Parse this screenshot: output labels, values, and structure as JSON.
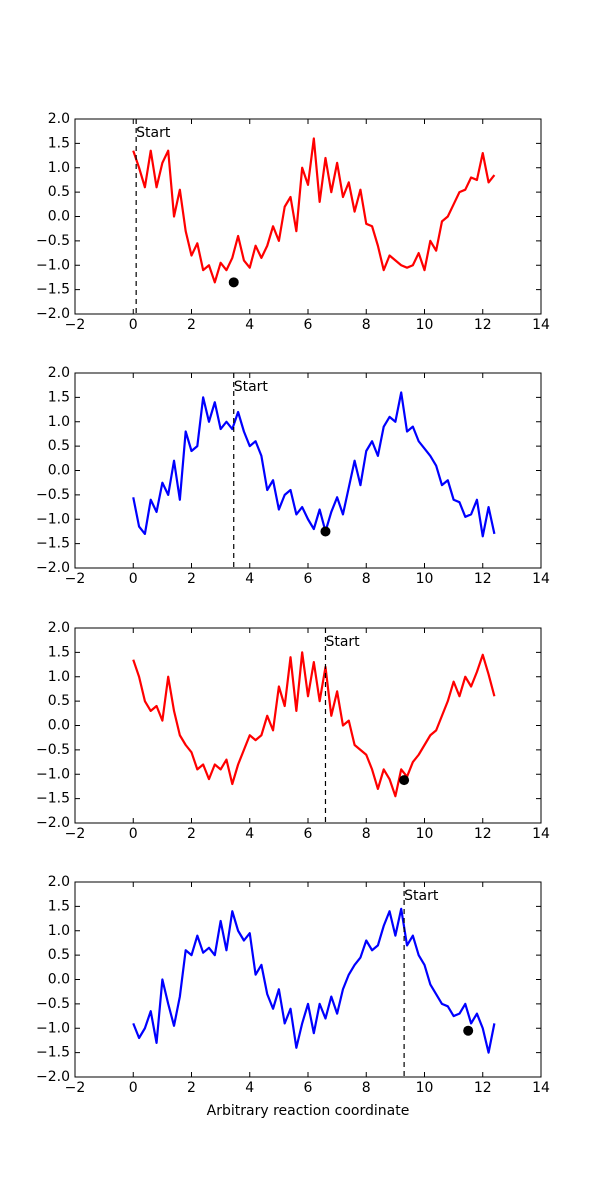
{
  "chart_data": [
    {
      "type": "line",
      "x": [
        0,
        0.2,
        0.4,
        0.6,
        0.8,
        1.0,
        1.2,
        1.4,
        1.6,
        1.8,
        2.0,
        2.2,
        2.4,
        2.6,
        2.8,
        3.0,
        3.2,
        3.4,
        3.6,
        3.8,
        4.0,
        4.2,
        4.4,
        4.6,
        4.8,
        5.0,
        5.2,
        5.4,
        5.6,
        5.8,
        6.0,
        6.2,
        6.4,
        6.6,
        6.8,
        7.0,
        7.2,
        7.4,
        7.6,
        7.8,
        8.0,
        8.2,
        8.4,
        8.6,
        8.8,
        9.0,
        9.2,
        9.4,
        9.6,
        9.8,
        10.0,
        10.2,
        10.4,
        10.6,
        10.8,
        11.0,
        11.2,
        11.4,
        11.6,
        11.8,
        12.0,
        12.2,
        12.4
      ],
      "series": [
        {
          "color": "#ff0000",
          "values": [
            1.35,
            1.0,
            0.6,
            1.35,
            0.6,
            1.1,
            1.35,
            0.0,
            0.55,
            -0.3,
            -0.8,
            -0.55,
            -1.1,
            -1.0,
            -1.35,
            -0.95,
            -1.1,
            -0.85,
            -0.4,
            -0.9,
            -1.05,
            -0.6,
            -0.85,
            -0.6,
            -0.2,
            -0.5,
            0.2,
            0.4,
            -0.3,
            1.0,
            0.65,
            1.6,
            0.3,
            1.2,
            0.5,
            1.1,
            0.4,
            0.7,
            0.1,
            0.55,
            -0.15,
            -0.2,
            -0.6,
            -1.1,
            -0.8,
            -0.9,
            -1.0,
            -1.05,
            -1.0,
            -0.75,
            -1.1,
            -0.5,
            -0.7,
            -0.1,
            0.0,
            0.25,
            0.5,
            0.55,
            0.8,
            0.75,
            1.3,
            0.7,
            0.85
          ]
        }
      ],
      "point": {
        "x": 3.45,
        "y": -1.35,
        "color": "#000000"
      },
      "vline": {
        "x": 0.1,
        "label": "Start"
      },
      "xlim": [
        -2,
        14
      ],
      "ylim": [
        -2,
        2
      ],
      "xticks": [
        {
          "value": -2,
          "label": "−2"
        },
        0,
        2,
        4,
        6,
        8,
        10,
        12,
        14
      ],
      "yticks": [
        {
          "value": -2,
          "label": "−2.0"
        },
        {
          "value": -1.5,
          "label": "−1.5"
        },
        {
          "value": -1,
          "label": "−1.0"
        },
        {
          "value": -0.5,
          "label": "−0.5"
        },
        {
          "value": 0,
          "label": "0.0"
        },
        0.5,
        {
          "value": 1,
          "label": "1.0"
        },
        1.5,
        {
          "value": 2,
          "label": "2.0"
        }
      ]
    },
    {
      "type": "line",
      "x": [
        0,
        0.2,
        0.4,
        0.6,
        0.8,
        1.0,
        1.2,
        1.4,
        1.6,
        1.8,
        2.0,
        2.2,
        2.4,
        2.6,
        2.8,
        3.0,
        3.2,
        3.4,
        3.6,
        3.8,
        4.0,
        4.2,
        4.4,
        4.6,
        4.8,
        5.0,
        5.2,
        5.4,
        5.6,
        5.8,
        6.0,
        6.2,
        6.4,
        6.6,
        6.8,
        7.0,
        7.2,
        7.4,
        7.6,
        7.8,
        8.0,
        8.2,
        8.4,
        8.6,
        8.8,
        9.0,
        9.2,
        9.4,
        9.6,
        9.8,
        10.0,
        10.2,
        10.4,
        10.6,
        10.8,
        11.0,
        11.2,
        11.4,
        11.6,
        11.8,
        12.0,
        12.2,
        12.4
      ],
      "series": [
        {
          "color": "#0000ff",
          "values": [
            -0.55,
            -1.15,
            -1.3,
            -0.6,
            -0.85,
            -0.25,
            -0.5,
            0.2,
            -0.6,
            0.8,
            0.4,
            0.5,
            1.5,
            1.0,
            1.4,
            0.85,
            1.0,
            0.85,
            1.2,
            0.8,
            0.5,
            0.6,
            0.3,
            -0.4,
            -0.2,
            -0.8,
            -0.5,
            -0.4,
            -0.9,
            -0.75,
            -1.0,
            -1.2,
            -0.8,
            -1.25,
            -0.85,
            -0.55,
            -0.9,
            -0.35,
            0.2,
            -0.3,
            0.4,
            0.6,
            0.3,
            0.9,
            1.1,
            1.0,
            1.6,
            0.8,
            0.9,
            0.6,
            0.45,
            0.3,
            0.1,
            -0.3,
            -0.2,
            -0.6,
            -0.65,
            -0.95,
            -0.9,
            -0.6,
            -1.35,
            -0.75,
            -1.3
          ]
        }
      ],
      "point": {
        "x": 6.6,
        "y": -1.25,
        "color": "#000000"
      },
      "vline": {
        "x": 3.45,
        "label": "Start"
      },
      "xlim": [
        -2,
        14
      ],
      "ylim": [
        -2,
        2
      ],
      "xticks": [
        {
          "value": -2,
          "label": "−2"
        },
        0,
        2,
        4,
        6,
        8,
        10,
        12,
        14
      ],
      "yticks": [
        {
          "value": -2,
          "label": "−2.0"
        },
        {
          "value": -1.5,
          "label": "−1.5"
        },
        {
          "value": -1,
          "label": "−1.0"
        },
        {
          "value": -0.5,
          "label": "−0.5"
        },
        {
          "value": 0,
          "label": "0.0"
        },
        0.5,
        {
          "value": 1,
          "label": "1.0"
        },
        1.5,
        {
          "value": 2,
          "label": "2.0"
        }
      ]
    },
    {
      "type": "line",
      "x": [
        0,
        0.2,
        0.4,
        0.6,
        0.8,
        1.0,
        1.2,
        1.4,
        1.6,
        1.8,
        2.0,
        2.2,
        2.4,
        2.6,
        2.8,
        3.0,
        3.2,
        3.4,
        3.6,
        3.8,
        4.0,
        4.2,
        4.4,
        4.6,
        4.8,
        5.0,
        5.2,
        5.4,
        5.6,
        5.8,
        6.0,
        6.2,
        6.4,
        6.6,
        6.8,
        7.0,
        7.2,
        7.4,
        7.6,
        7.8,
        8.0,
        8.2,
        8.4,
        8.6,
        8.8,
        9.0,
        9.2,
        9.4,
        9.6,
        9.8,
        10.0,
        10.2,
        10.4,
        10.6,
        10.8,
        11.0,
        11.2,
        11.4,
        11.6,
        11.8,
        12.0,
        12.2,
        12.4
      ],
      "series": [
        {
          "color": "#ff0000",
          "values": [
            1.35,
            1.0,
            0.5,
            0.3,
            0.4,
            0.1,
            1.0,
            0.3,
            -0.2,
            -0.4,
            -0.55,
            -0.9,
            -0.8,
            -1.1,
            -0.8,
            -0.9,
            -0.7,
            -1.2,
            -0.8,
            -0.5,
            -0.2,
            -0.3,
            -0.2,
            0.2,
            -0.1,
            0.8,
            0.4,
            1.4,
            0.3,
            1.5,
            0.6,
            1.3,
            0.5,
            1.2,
            0.2,
            0.7,
            0.0,
            0.1,
            -0.4,
            -0.5,
            -0.6,
            -0.9,
            -1.3,
            -0.9,
            -1.1,
            -1.45,
            -0.9,
            -1.05,
            -0.75,
            -0.6,
            -0.4,
            -0.2,
            -0.1,
            0.2,
            0.5,
            0.9,
            0.6,
            1.0,
            0.8,
            1.1,
            1.45,
            1.05,
            0.6
          ]
        }
      ],
      "point": {
        "x": 9.3,
        "y": -1.12,
        "color": "#000000"
      },
      "vline": {
        "x": 6.6,
        "label": "Start"
      },
      "xlim": [
        -2,
        14
      ],
      "ylim": [
        -2,
        2
      ],
      "xticks": [
        {
          "value": -2,
          "label": "−2"
        },
        0,
        2,
        4,
        6,
        8,
        10,
        12,
        14
      ],
      "yticks": [
        {
          "value": -2,
          "label": "−2.0"
        },
        {
          "value": -1.5,
          "label": "−1.5"
        },
        {
          "value": -1,
          "label": "−1.0"
        },
        {
          "value": -0.5,
          "label": "−0.5"
        },
        {
          "value": 0,
          "label": "0.0"
        },
        0.5,
        {
          "value": 1,
          "label": "1.0"
        },
        1.5,
        {
          "value": 2,
          "label": "2.0"
        }
      ]
    },
    {
      "type": "line",
      "x": [
        0,
        0.2,
        0.4,
        0.6,
        0.8,
        1.0,
        1.2,
        1.4,
        1.6,
        1.8,
        2.0,
        2.2,
        2.4,
        2.6,
        2.8,
        3.0,
        3.2,
        3.4,
        3.6,
        3.8,
        4.0,
        4.2,
        4.4,
        4.6,
        4.8,
        5.0,
        5.2,
        5.4,
        5.6,
        5.8,
        6.0,
        6.2,
        6.4,
        6.6,
        6.8,
        7.0,
        7.2,
        7.4,
        7.6,
        7.8,
        8.0,
        8.2,
        8.4,
        8.6,
        8.8,
        9.0,
        9.2,
        9.4,
        9.6,
        9.8,
        10.0,
        10.2,
        10.4,
        10.6,
        10.8,
        11.0,
        11.2,
        11.4,
        11.6,
        11.8,
        12.0,
        12.2,
        12.4
      ],
      "series": [
        {
          "color": "#0000ff",
          "values": [
            -0.9,
            -1.2,
            -1.0,
            -0.65,
            -1.3,
            0.0,
            -0.5,
            -0.95,
            -0.35,
            0.6,
            0.5,
            0.9,
            0.55,
            0.65,
            0.5,
            1.2,
            0.6,
            1.4,
            1.0,
            0.8,
            0.95,
            0.1,
            0.3,
            -0.3,
            -0.6,
            -0.2,
            -0.9,
            -0.6,
            -1.4,
            -0.9,
            -0.5,
            -1.1,
            -0.5,
            -0.8,
            -0.35,
            -0.7,
            -0.2,
            0.1,
            0.3,
            0.45,
            0.8,
            0.6,
            0.7,
            1.1,
            1.4,
            0.9,
            1.45,
            0.7,
            0.9,
            0.5,
            0.3,
            -0.1,
            -0.3,
            -0.5,
            -0.55,
            -0.75,
            -0.7,
            -0.5,
            -0.9,
            -0.7,
            -1.0,
            -1.5,
            -0.9
          ]
        }
      ],
      "point": {
        "x": 11.5,
        "y": -1.05,
        "color": "#000000"
      },
      "vline": {
        "x": 9.3,
        "label": "Start"
      },
      "xlabel": "Arbitrary reaction coordinate",
      "xlim": [
        -2,
        14
      ],
      "ylim": [
        -2,
        2
      ],
      "xticks": [
        {
          "value": -2,
          "label": "−2"
        },
        0,
        2,
        4,
        6,
        8,
        10,
        12,
        14
      ],
      "yticks": [
        {
          "value": -2,
          "label": "−2.0"
        },
        {
          "value": -1.5,
          "label": "−1.5"
        },
        {
          "value": -1,
          "label": "−1.0"
        },
        {
          "value": -0.5,
          "label": "−0.5"
        },
        {
          "value": 0,
          "label": "0.0"
        },
        0.5,
        {
          "value": 1,
          "label": "1.0"
        },
        1.5,
        {
          "value": 2,
          "label": "2.0"
        }
      ]
    }
  ]
}
